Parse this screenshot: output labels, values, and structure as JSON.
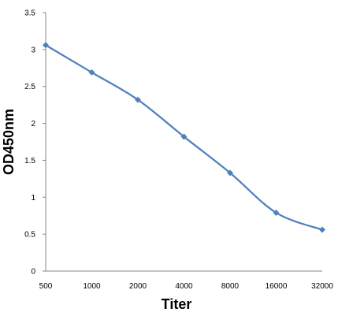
{
  "chart_data": {
    "type": "line",
    "xlabel": "Titer",
    "ylabel": "OD450nm",
    "categories": [
      "500",
      "1000",
      "2000",
      "4000",
      "8000",
      "16000",
      "32000"
    ],
    "series": [
      {
        "values": [
          3.06,
          2.69,
          2.32,
          1.82,
          1.33,
          0.79,
          0.56
        ]
      }
    ],
    "yticks": [
      "0",
      "0.5",
      "1",
      "1.5",
      "2",
      "2.5",
      "3",
      "3.5"
    ],
    "ylim": [
      0,
      3.5
    ],
    "grid": false,
    "marker": "diamond",
    "line_color": "#4f81bd",
    "axis_color": "#868686"
  }
}
